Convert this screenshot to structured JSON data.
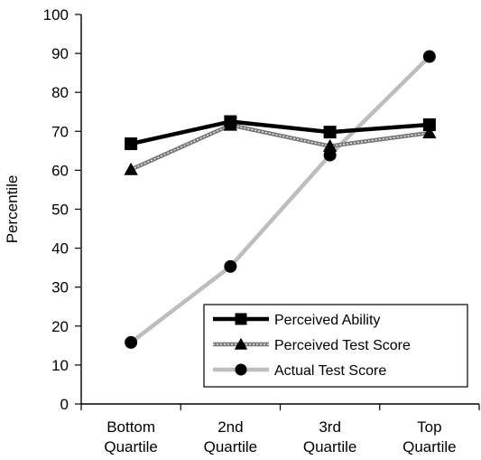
{
  "chart_data": {
    "type": "line",
    "title": "",
    "xlabel": "",
    "ylabel": "Percentile",
    "ylim": [
      0,
      100
    ],
    "yticks": [
      "0",
      "10",
      "20",
      "30",
      "40",
      "50",
      "60",
      "70",
      "80",
      "90",
      "100"
    ],
    "categories": [
      [
        "Bottom",
        "Quartile"
      ],
      [
        "2nd",
        "Quartile"
      ],
      [
        "3rd",
        "Quartile"
      ],
      [
        "Top",
        "Quartile"
      ]
    ],
    "grid": false,
    "legend_position": "bottom-right",
    "series": [
      {
        "name": "Perceived Ability",
        "values": [
          66.8,
          72.5,
          69.8,
          71.7
        ],
        "marker": "square",
        "color": "#000000"
      },
      {
        "name": "Perceived Test Score",
        "values": [
          60.2,
          71.6,
          66.2,
          69.6
        ],
        "marker": "triangle",
        "color": "#777777"
      },
      {
        "name": "Actual Test Score",
        "values": [
          15.8,
          35.3,
          63.9,
          89.2
        ],
        "marker": "circle",
        "color": "#bdbdbd"
      }
    ]
  }
}
